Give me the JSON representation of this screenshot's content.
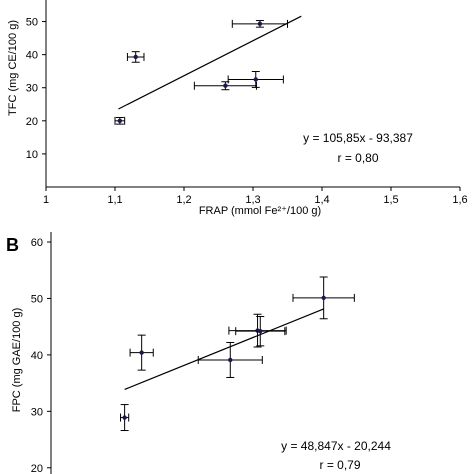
{
  "chart_data": [
    {
      "type": "scatter",
      "panel": "",
      "xlabel": "FRAP (mmol Fe²⁺/100 g)",
      "ylabel": "TFC (mg CE/100 g)",
      "xlim": [
        1,
        1.6
      ],
      "ylim": [
        0,
        55
      ],
      "x_ticks": [
        "1",
        "1,1",
        "1,2",
        "1,3",
        "1,4",
        "1,5",
        "1,6"
      ],
      "y_ticks": [
        "10",
        "20",
        "30",
        "40",
        "50"
      ],
      "points": [
        {
          "x": 1.107,
          "y": 20.0,
          "xerr": 0.007,
          "yerr": 1.0
        },
        {
          "x": 1.13,
          "y": 39.3,
          "xerr": 0.012,
          "yerr": 1.6
        },
        {
          "x": 1.26,
          "y": 30.6,
          "xerr": 0.045,
          "yerr": 1.2
        },
        {
          "x": 1.304,
          "y": 32.5,
          "xerr": 0.04,
          "yerr": 2.4
        },
        {
          "x": 1.31,
          "y": 49.3,
          "xerr": 0.04,
          "yerr": 1.0
        }
      ],
      "fit": {
        "x_start": 1.105,
        "x_end": 1.37
      },
      "equation": "y = 105,85x - 93,387",
      "r_text": "r = 0,80",
      "grid": false
    },
    {
      "type": "scatter",
      "panel": "B",
      "xlabel": "",
      "ylabel": "FPC (mg GAE/100 g)",
      "xlim": [
        1,
        1.6
      ],
      "ylim": [
        15,
        60
      ],
      "x_ticks": [],
      "y_ticks": [
        "20",
        "30",
        "40",
        "50",
        "60"
      ],
      "points": [
        {
          "x": 1.108,
          "y": 28.9,
          "xerr": 0.006,
          "yerr": 2.3
        },
        {
          "x": 1.133,
          "y": 40.4,
          "xerr": 0.017,
          "yerr": 3.1
        },
        {
          "x": 1.263,
          "y": 39.1,
          "xerr": 0.047,
          "yerr": 3.1
        },
        {
          "x": 1.303,
          "y": 44.3,
          "xerr": 0.042,
          "yerr": 2.9
        },
        {
          "x": 1.307,
          "y": 44.2,
          "xerr": 0.036,
          "yerr": 2.6
        },
        {
          "x": 1.4,
          "y": 50.1,
          "xerr": 0.045,
          "yerr": 3.7
        }
      ],
      "fit": {
        "x_start": 1.108,
        "x_end": 1.4
      },
      "equation": "y = 48,847x - 20,244",
      "r_text": "r = 0,79",
      "grid": false
    }
  ]
}
